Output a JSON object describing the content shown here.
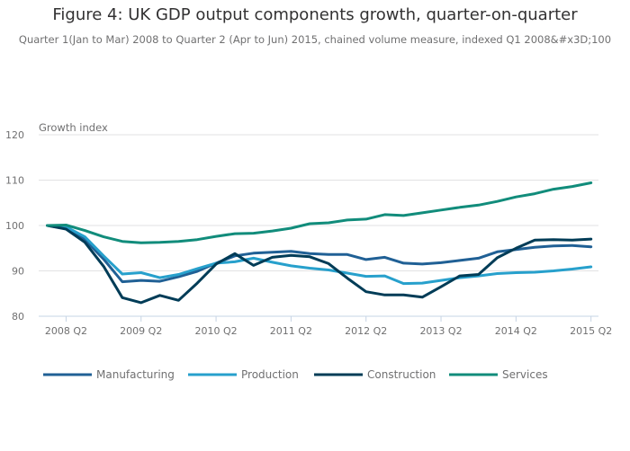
{
  "chart_data": {
    "type": "line",
    "title": "Figure 4: UK GDP output components growth, quarter-on-quarter",
    "subtitle": "Quarter 1(Jan to Mar) 2008 to Quarter 2 (Apr to Jun) 2015, chained volume measure, indexed Q1 2008&#x3D;100",
    "ylabel": "Growth index",
    "xlabel": "",
    "ylim": [
      80,
      120
    ],
    "yticks": [
      80,
      90,
      100,
      110,
      120
    ],
    "grid": true,
    "legend_position": "bottom",
    "x": [
      "2008 Q1",
      "2008 Q2",
      "2008 Q3",
      "2008 Q4",
      "2009 Q1",
      "2009 Q2",
      "2009 Q3",
      "2009 Q4",
      "2010 Q1",
      "2010 Q2",
      "2010 Q3",
      "2010 Q4",
      "2011 Q1",
      "2011 Q2",
      "2011 Q3",
      "2011 Q4",
      "2012 Q1",
      "2012 Q2",
      "2012 Q3",
      "2012 Q4",
      "2013 Q1",
      "2013 Q2",
      "2013 Q3",
      "2013 Q4",
      "2014 Q1",
      "2014 Q2",
      "2014 Q3",
      "2014 Q4",
      "2015 Q1",
      "2015 Q2"
    ],
    "xtick_labels": [
      "2008 Q2",
      "2009 Q2",
      "2010 Q2",
      "2011 Q2",
      "2012 Q2",
      "2013 Q2",
      "2014 Q2",
      "2015 Q2"
    ],
    "series": [
      {
        "name": "Manufacturing",
        "color": "#206095",
        "values": [
          100,
          99.3,
          96.9,
          92.6,
          87.6,
          87.9,
          87.7,
          88.7,
          89.9,
          91.7,
          93.3,
          93.9,
          94.1,
          94.3,
          93.8,
          93.6,
          93.6,
          92.5,
          93.0,
          91.7,
          91.5,
          91.8,
          92.3,
          92.8,
          94.2,
          94.7,
          95.2,
          95.5,
          95.6,
          95.3
        ]
      },
      {
        "name": "Production",
        "color": "#27a0cc",
        "values": [
          100,
          99.7,
          97.5,
          93.3,
          89.3,
          89.6,
          88.5,
          89.2,
          90.5,
          91.7,
          92.0,
          92.8,
          91.9,
          91.1,
          90.6,
          90.2,
          89.5,
          88.8,
          88.9,
          87.2,
          87.3,
          87.9,
          88.5,
          88.9,
          89.4,
          89.6,
          89.7,
          90.0,
          90.4,
          90.9
        ]
      },
      {
        "name": "Construction",
        "color": "#003c57",
        "values": [
          100,
          99.2,
          96.3,
          91.0,
          84.1,
          83.0,
          84.6,
          83.5,
          87.3,
          91.5,
          93.8,
          91.2,
          93.0,
          93.4,
          93.1,
          91.6,
          88.4,
          85.4,
          84.7,
          84.7,
          84.2,
          86.5,
          88.9,
          89.2,
          92.9,
          95.0,
          96.8,
          96.9,
          96.8,
          97.0
        ]
      },
      {
        "name": "Services",
        "color": "#118c7b",
        "values": [
          100,
          100.1,
          98.9,
          97.5,
          96.5,
          96.2,
          96.3,
          96.5,
          96.9,
          97.6,
          98.2,
          98.3,
          98.8,
          99.4,
          100.4,
          100.6,
          101.2,
          101.4,
          102.4,
          102.2,
          102.8,
          103.4,
          104.0,
          104.5,
          105.3,
          106.3,
          107.0,
          108.0,
          108.6,
          109.4
        ]
      }
    ]
  }
}
